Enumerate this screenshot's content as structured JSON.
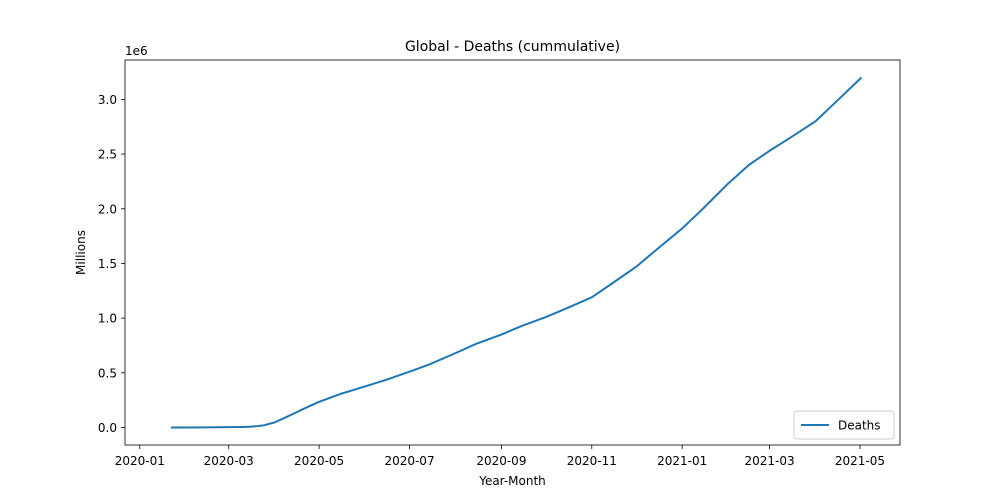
{
  "chart_data": {
    "type": "line",
    "title": "Global - Deaths (cummulative)",
    "xlabel": "Year-Month",
    "ylabel": "Millions",
    "y_offset_label": "1e6",
    "x_ticks": [
      {
        "date": "2020-01-01",
        "label": "2020-01"
      },
      {
        "date": "2020-03-01",
        "label": "2020-03"
      },
      {
        "date": "2020-05-01",
        "label": "2020-05"
      },
      {
        "date": "2020-07-01",
        "label": "2020-07"
      },
      {
        "date": "2020-09-01",
        "label": "2020-09"
      },
      {
        "date": "2020-11-01",
        "label": "2020-11"
      },
      {
        "date": "2021-01-01",
        "label": "2021-01"
      },
      {
        "date": "2021-03-01",
        "label": "2021-03"
      },
      {
        "date": "2021-05-01",
        "label": "2021-05"
      }
    ],
    "y_ticks": [
      {
        "value": 0,
        "label": "0.0"
      },
      {
        "value": 500000,
        "label": "0.5"
      },
      {
        "value": 1000000,
        "label": "1.0"
      },
      {
        "value": 1500000,
        "label": "1.5"
      },
      {
        "value": 2000000,
        "label": "2.0"
      },
      {
        "value": 2500000,
        "label": "2.5"
      },
      {
        "value": 3000000,
        "label": "3.0"
      }
    ],
    "xlim": [
      "2019-12-22",
      "2021-05-28"
    ],
    "ylim": [
      -160000,
      3360000
    ],
    "grid": false,
    "legend_position": "lower-right",
    "series": [
      {
        "name": "Deaths",
        "color": "#1f77b4",
        "points": [
          {
            "x": "2020-01-22",
            "y": 17
          },
          {
            "x": "2020-02-01",
            "y": 259
          },
          {
            "x": "2020-02-15",
            "y": 1527
          },
          {
            "x": "2020-03-01",
            "y": 3000
          },
          {
            "x": "2020-03-10",
            "y": 4300
          },
          {
            "x": "2020-03-15",
            "y": 6500
          },
          {
            "x": "2020-03-20",
            "y": 12000
          },
          {
            "x": "2020-03-25",
            "y": 21000
          },
          {
            "x": "2020-04-01",
            "y": 47000
          },
          {
            "x": "2020-04-08",
            "y": 90000
          },
          {
            "x": "2020-04-15",
            "y": 135000
          },
          {
            "x": "2020-04-22",
            "y": 180000
          },
          {
            "x": "2020-05-01",
            "y": 235000
          },
          {
            "x": "2020-05-15",
            "y": 305000
          },
          {
            "x": "2020-06-01",
            "y": 375000
          },
          {
            "x": "2020-06-15",
            "y": 435000
          },
          {
            "x": "2020-07-01",
            "y": 510000
          },
          {
            "x": "2020-07-15",
            "y": 580000
          },
          {
            "x": "2020-08-01",
            "y": 680000
          },
          {
            "x": "2020-08-15",
            "y": 765000
          },
          {
            "x": "2020-09-01",
            "y": 850000
          },
          {
            "x": "2020-09-15",
            "y": 930000
          },
          {
            "x": "2020-10-01",
            "y": 1010000
          },
          {
            "x": "2020-10-15",
            "y": 1090000
          },
          {
            "x": "2020-11-01",
            "y": 1190000
          },
          {
            "x": "2020-11-15",
            "y": 1320000
          },
          {
            "x": "2020-12-01",
            "y": 1470000
          },
          {
            "x": "2020-12-15",
            "y": 1630000
          },
          {
            "x": "2021-01-01",
            "y": 1820000
          },
          {
            "x": "2021-01-15",
            "y": 2000000
          },
          {
            "x": "2021-02-01",
            "y": 2230000
          },
          {
            "x": "2021-02-15",
            "y": 2400000
          },
          {
            "x": "2021-03-01",
            "y": 2530000
          },
          {
            "x": "2021-03-15",
            "y": 2650000
          },
          {
            "x": "2021-04-01",
            "y": 2800000
          },
          {
            "x": "2021-04-15",
            "y": 2980000
          },
          {
            "x": "2021-05-02",
            "y": 3200000
          }
        ]
      }
    ]
  }
}
